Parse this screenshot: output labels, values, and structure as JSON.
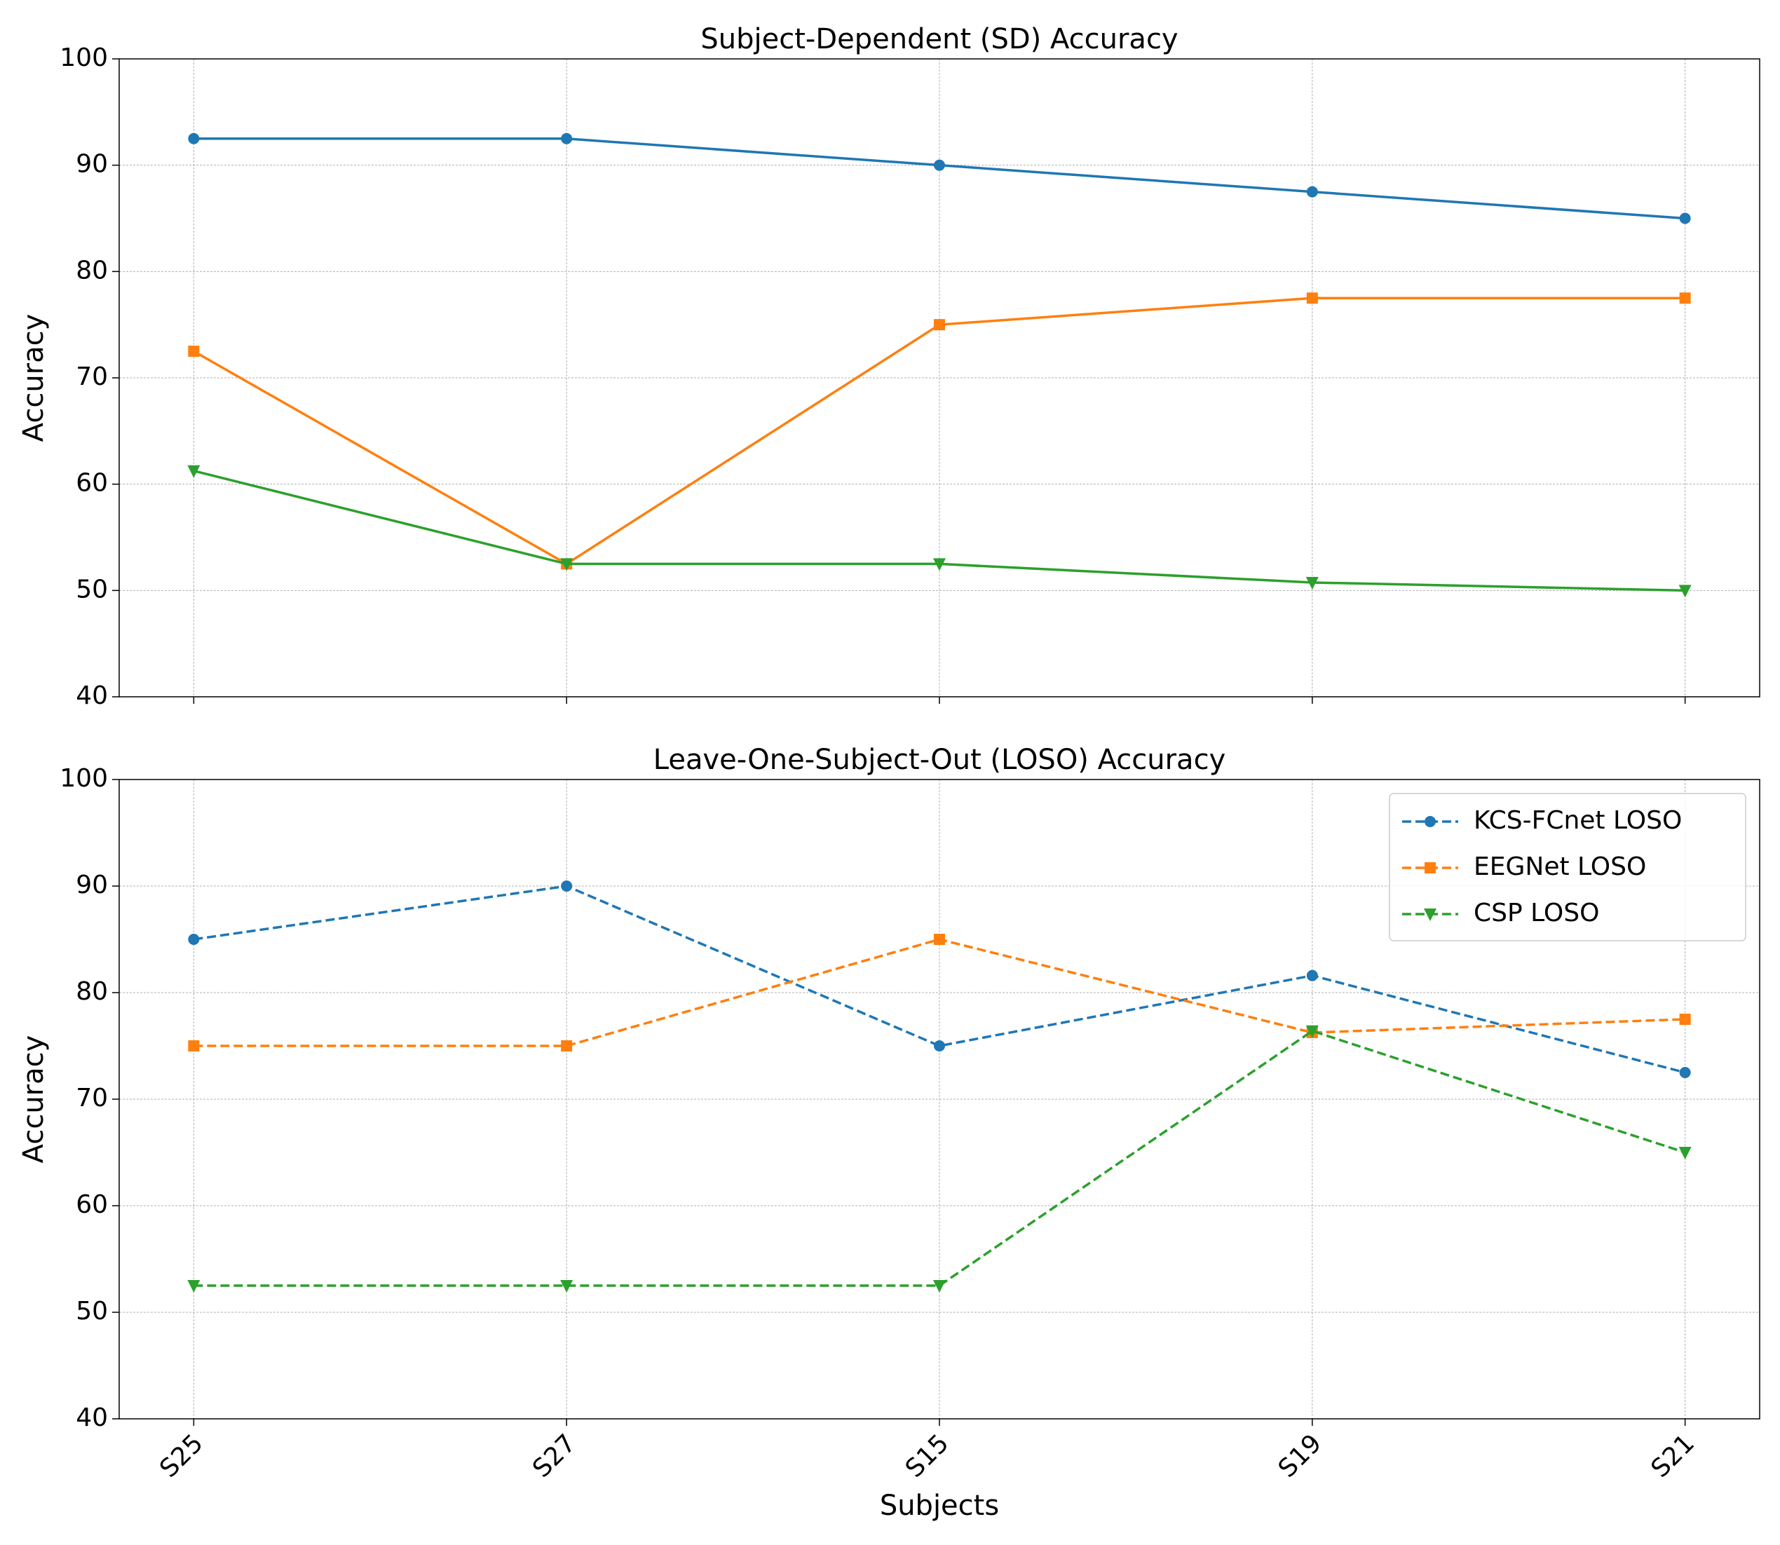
{
  "chart_data": [
    {
      "type": "line",
      "title": "Subject-Dependent (SD) Accuracy",
      "ylabel": "Accuracy",
      "ylim": [
        40,
        100
      ],
      "yticks": [
        40,
        50,
        60,
        70,
        80,
        90,
        100
      ],
      "grid": true,
      "series": [
        {
          "color": "#1f77b4",
          "marker": "circle",
          "linestyle": "solid",
          "values": [
            92.5,
            92.5,
            90,
            87.5,
            85
          ]
        },
        {
          "color": "#ff7f0e",
          "marker": "square",
          "linestyle": "solid",
          "values": [
            72.5,
            52.5,
            75,
            77.5,
            77.5
          ]
        },
        {
          "color": "#2ca02c",
          "marker": "triangle-down",
          "linestyle": "solid",
          "values": [
            61.25,
            52.5,
            52.5,
            50.75,
            50
          ]
        }
      ]
    },
    {
      "type": "line",
      "title": "Leave-One-Subject-Out (LOSO) Accuracy",
      "ylabel": "Accuracy",
      "xlabel": "Subjects",
      "categories": [
        "S25",
        "S27",
        "S15",
        "S19",
        "S21"
      ],
      "ylim": [
        40,
        100
      ],
      "yticks": [
        40,
        50,
        60,
        70,
        80,
        90,
        100
      ],
      "grid": true,
      "legend": "upper right",
      "series": [
        {
          "name": "KCS-FCnet LOSO",
          "color": "#1f77b4",
          "marker": "circle",
          "linestyle": "dashed",
          "values": [
            85,
            90,
            75,
            81.6,
            72.5
          ]
        },
        {
          "name": "EEGNet LOSO",
          "color": "#ff7f0e",
          "marker": "square",
          "linestyle": "dashed",
          "values": [
            75,
            75,
            85,
            76.25,
            77.5
          ]
        },
        {
          "name": "CSP LOSO",
          "color": "#2ca02c",
          "marker": "triangle-down",
          "linestyle": "dashed",
          "values": [
            52.5,
            52.5,
            52.5,
            76.4,
            65
          ]
        }
      ]
    }
  ]
}
